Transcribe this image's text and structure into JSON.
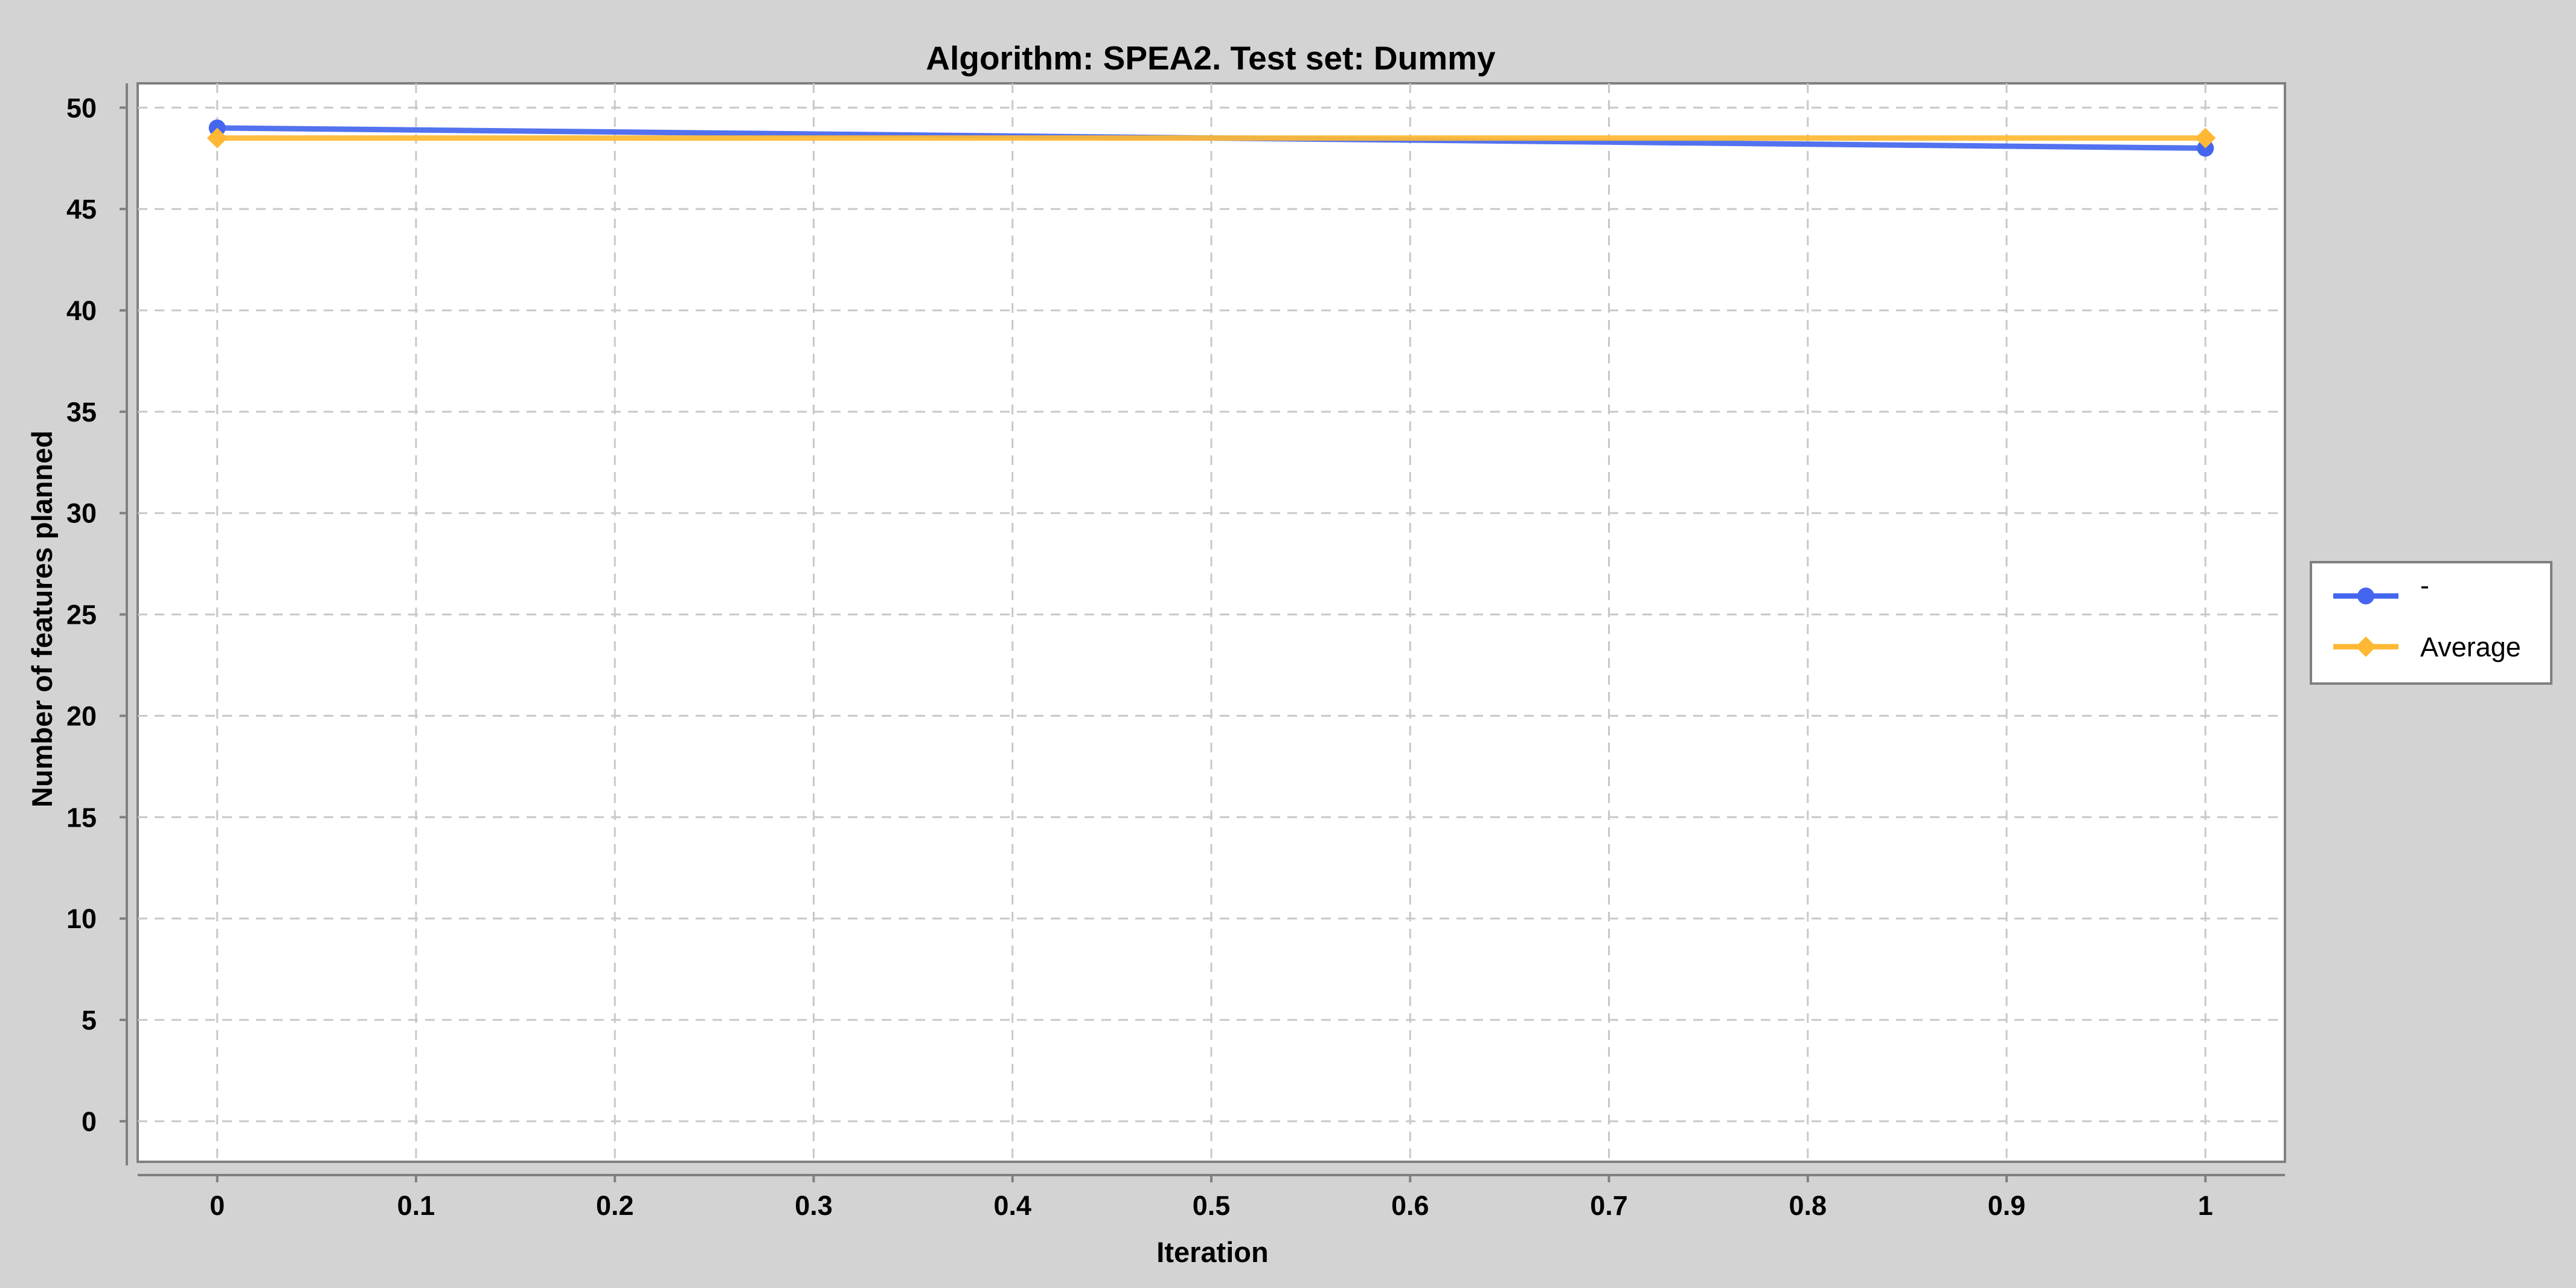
{
  "chart_data": {
    "type": "line",
    "title": "Algorithm: SPEA2. Test set: Dummy",
    "xlabel": "Iteration",
    "ylabel": "Number of features planned",
    "xlim": [
      -0.04,
      1.04
    ],
    "ylim": [
      -2,
      51.2
    ],
    "x_ticks": [
      0,
      0.1,
      0.2,
      0.3,
      0.4,
      0.5,
      0.6,
      0.7,
      0.8,
      0.9,
      1
    ],
    "x_tick_labels": [
      "0",
      "0.1",
      "0.2",
      "0.3",
      "0.4",
      "0.5",
      "0.6",
      "0.7",
      "0.8",
      "0.9",
      "1"
    ],
    "y_ticks": [
      0,
      5,
      10,
      15,
      20,
      25,
      30,
      35,
      40,
      45,
      50
    ],
    "y_tick_labels": [
      "0",
      "5",
      "10",
      "15",
      "20",
      "25",
      "30",
      "35",
      "40",
      "45",
      "50"
    ],
    "grid": true,
    "legend_position": "right",
    "series": [
      {
        "name": "-",
        "color": "#4466ee",
        "marker": "circle",
        "x": [
          0,
          1
        ],
        "y": [
          49,
          48
        ]
      },
      {
        "name": "Average",
        "color": "#ffb833",
        "marker": "diamond",
        "x": [
          0,
          1
        ],
        "y": [
          48.5,
          48.5
        ]
      }
    ]
  },
  "colors": {
    "background": "#d3d3d3",
    "plot_background": "#ffffff",
    "grid": "#c8c8c8",
    "axis": "#808080"
  }
}
